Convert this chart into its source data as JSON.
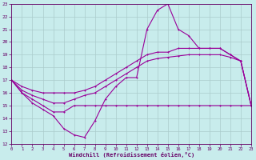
{
  "xlabel": "Windchill (Refroidissement éolien,°C)",
  "bg_color": "#c8ecec",
  "line_color": "#990099",
  "grid_color": "#aacccc",
  "axis_color": "#660066",
  "xlim": [
    0,
    23
  ],
  "ylim": [
    12,
    23
  ],
  "yticks": [
    12,
    13,
    14,
    15,
    16,
    17,
    18,
    19,
    20,
    21,
    22,
    23
  ],
  "xticks": [
    0,
    1,
    2,
    3,
    4,
    5,
    6,
    7,
    8,
    9,
    10,
    11,
    12,
    13,
    14,
    15,
    16,
    17,
    18,
    19,
    20,
    21,
    22,
    23
  ],
  "line1_x": [
    0,
    1,
    2,
    3,
    4,
    5,
    6,
    7,
    8,
    9,
    10,
    11,
    12,
    13,
    14,
    15,
    16,
    17,
    18,
    19,
    20,
    21,
    22,
    23
  ],
  "line1_y": [
    17,
    16,
    15.2,
    14.7,
    14.2,
    13.2,
    12.7,
    12.5,
    13.8,
    15.5,
    16.5,
    17.2,
    17.2,
    21,
    22.5,
    23,
    21,
    20.5,
    19.5,
    19.5,
    19.5,
    19,
    18.5,
    15
  ],
  "line2_x": [
    0,
    1,
    2,
    3,
    4,
    5,
    6,
    7,
    8,
    9,
    10,
    11,
    12,
    13,
    14,
    15,
    16,
    17,
    18,
    19,
    20,
    21,
    22,
    23
  ],
  "line2_y": [
    17,
    16,
    15.5,
    15,
    14.5,
    14.5,
    15,
    15,
    15,
    15,
    15,
    15,
    15,
    15,
    15,
    15,
    15,
    15,
    15,
    15,
    15,
    15,
    15,
    15
  ],
  "line3_x": [
    0,
    1,
    2,
    3,
    4,
    5,
    6,
    7,
    8,
    9,
    10,
    11,
    12,
    13,
    14,
    15,
    16,
    17,
    18,
    19,
    20,
    21,
    22,
    23
  ],
  "line3_y": [
    17,
    16.5,
    16.2,
    16,
    16,
    16,
    16,
    16.2,
    16.5,
    17,
    17.5,
    18,
    18.5,
    19,
    19.2,
    19.2,
    19.5,
    19.5,
    19.5,
    19.5,
    19.5,
    19,
    18.5,
    15
  ],
  "line4_x": [
    0,
    1,
    2,
    3,
    4,
    5,
    6,
    7,
    8,
    9,
    10,
    11,
    12,
    13,
    14,
    15,
    16,
    17,
    18,
    19,
    20,
    21,
    22,
    23
  ],
  "line4_y": [
    17,
    16.2,
    15.8,
    15.5,
    15.2,
    15.2,
    15.5,
    15.8,
    16,
    16.5,
    17,
    17.5,
    18,
    18.5,
    18.7,
    18.8,
    18.9,
    19,
    19,
    19,
    19,
    18.8,
    18.5,
    15
  ]
}
